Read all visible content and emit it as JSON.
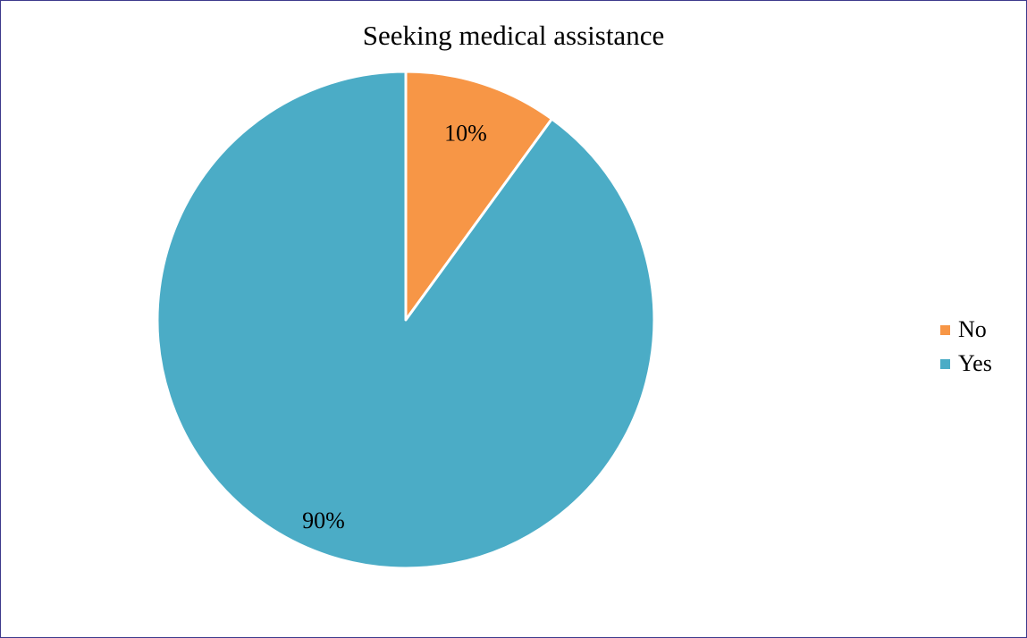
{
  "chart_data": {
    "type": "pie",
    "title": "Seeking medical assistance",
    "categories": [
      "No",
      "Yes"
    ],
    "values": [
      10,
      90
    ],
    "data_labels": [
      "10%",
      "90%"
    ],
    "colors": [
      "#F79646",
      "#4BACC6"
    ],
    "start_angle": "12 o'clock",
    "direction": "clockwise",
    "legend": {
      "position": "right",
      "entries": [
        "No",
        "Yes"
      ]
    }
  }
}
